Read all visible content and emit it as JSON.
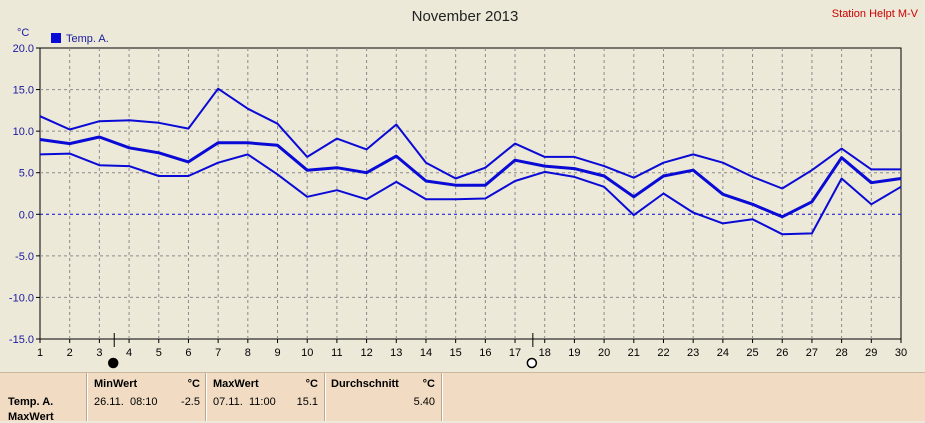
{
  "chart_data": {
    "type": "line",
    "title": "November 2013",
    "station": "Station Helpt M-V",
    "ylabel": "°C",
    "legend": "Temp. A.",
    "legend_placement": "top-left",
    "ylim": [
      -15,
      20
    ],
    "yticks": [
      "20.0",
      "15.0",
      "10.0",
      "5.0",
      "0.0",
      "-5.0",
      "-10.0",
      "-15.0"
    ],
    "x": [
      1,
      2,
      3,
      4,
      5,
      6,
      7,
      8,
      9,
      10,
      11,
      12,
      13,
      14,
      15,
      16,
      17,
      18,
      19,
      20,
      21,
      22,
      23,
      24,
      25,
      26,
      27,
      28,
      29,
      30
    ],
    "grid": true,
    "zero_line": true,
    "series": [
      {
        "role": "max",
        "values": [
          11.8,
          10.2,
          11.2,
          11.3,
          11.0,
          10.3,
          15.1,
          12.7,
          10.9,
          6.9,
          9.1,
          7.8,
          10.8,
          6.2,
          4.3,
          5.6,
          8.5,
          6.9,
          6.9,
          5.8,
          4.4,
          6.2,
          7.2,
          6.2,
          4.5,
          3.1,
          5.3,
          7.9,
          5.4,
          5.4
        ]
      },
      {
        "role": "mean",
        "values": [
          9.0,
          8.5,
          9.3,
          8.0,
          7.4,
          6.3,
          8.6,
          8.6,
          8.3,
          5.3,
          5.6,
          5.0,
          7.0,
          4.0,
          3.5,
          3.5,
          6.5,
          5.8,
          5.5,
          4.6,
          2.1,
          4.6,
          5.3,
          2.4,
          1.2,
          -0.3,
          1.5,
          6.8,
          3.8,
          4.3
        ]
      },
      {
        "role": "min",
        "values": [
          7.2,
          7.3,
          5.9,
          5.8,
          4.6,
          4.6,
          6.2,
          7.2,
          4.8,
          2.1,
          2.9,
          1.8,
          3.9,
          1.8,
          1.8,
          1.9,
          4.0,
          5.1,
          4.5,
          3.3,
          -0.1,
          2.5,
          0.2,
          -1.1,
          -0.6,
          -2.4,
          -2.3,
          4.3,
          1.2,
          3.3
        ]
      }
    ],
    "markers": [
      {
        "type": "filled-circle",
        "x": 3.5
      },
      {
        "type": "hollow-circle",
        "x": 17.6
      }
    ]
  },
  "stats": {
    "row_label_1": "Temp. A.",
    "row_label_2": "MaxWert",
    "min": {
      "header": "MinWert",
      "unit": "°C",
      "date": "26.11.",
      "time": "08:10",
      "value": "-2.5"
    },
    "max": {
      "header": "MaxWert",
      "unit": "°C",
      "date": "07.11.",
      "time": "11:00",
      "value": "15.1"
    },
    "avg": {
      "header": "Durchschnitt",
      "unit": "°C",
      "value": "5.40"
    }
  },
  "colors": {
    "line": "#0a0ad6",
    "grid": "#8a8a8a",
    "background": "#ece9d8",
    "stats_panel": "#f1dcc3",
    "station": "#cc0000"
  }
}
